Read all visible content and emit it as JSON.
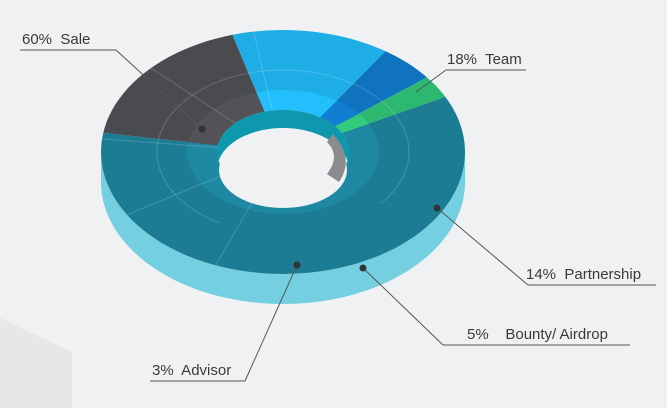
{
  "chart_data": {
    "type": "pie",
    "variant": "3d-donut",
    "title": "",
    "slices": [
      {
        "label": "Sale",
        "value": 60,
        "display": "60%  Sale",
        "color": "#1b7c94"
      },
      {
        "label": "Team",
        "value": 18,
        "display": "18%  Team",
        "color": "#4a4b4f"
      },
      {
        "label": "Partnership",
        "value": 14,
        "display": "14%  Partnership",
        "color": "#1fade6"
      },
      {
        "label": "Bounty/ Airdrop",
        "value": 5,
        "display": "5%    Bounty/ Airdrop",
        "color": "#0f73bf"
      },
      {
        "label": "Advisor",
        "value": 3,
        "display": "3%  Advisor",
        "color": "#2db870"
      }
    ],
    "side_color": "#74cfe0",
    "legend": "callout-labels"
  }
}
